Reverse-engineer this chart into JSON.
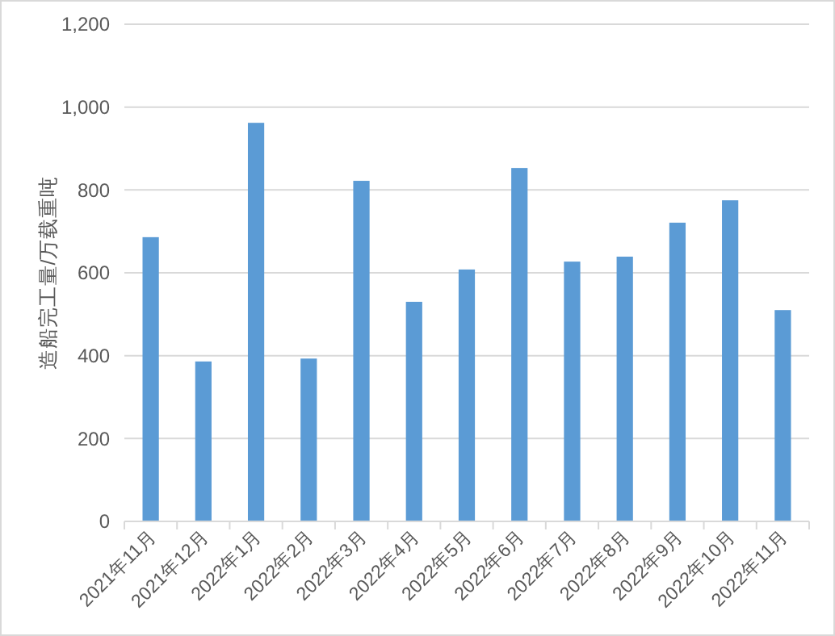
{
  "chart_data": {
    "type": "bar",
    "ylabel": "造船完工量/万载重吨",
    "categories": [
      "2021年11月",
      "2021年12月",
      "2022年1月",
      "2022年2月",
      "2022年3月",
      "2022年4月",
      "2022年5月",
      "2022年6月",
      "2022年7月",
      "2022年8月",
      "2022年9月",
      "2022年10月",
      "2022年11月"
    ],
    "values": [
      686,
      386,
      962,
      393,
      822,
      530,
      608,
      853,
      627,
      639,
      721,
      775,
      510
    ],
    "color": "#5b9bd5",
    "ylim": [
      0,
      1200
    ],
    "yticks": [
      0,
      200,
      400,
      600,
      800,
      {
        "value": 1000,
        "label": "1,000"
      },
      {
        "value": 1200,
        "label": "1,200"
      }
    ],
    "grid": "y"
  }
}
